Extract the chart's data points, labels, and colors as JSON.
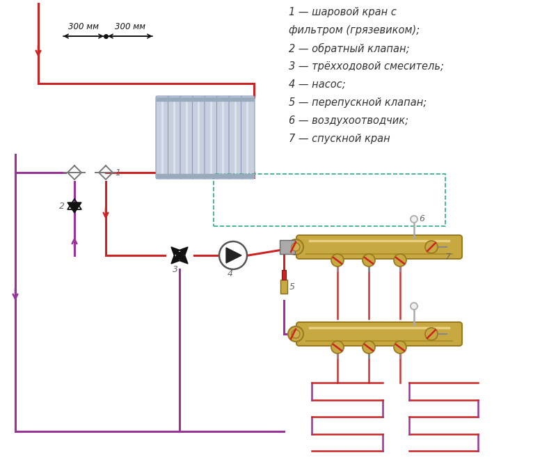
{
  "bg_color": "#ffffff",
  "red": "#cc2222",
  "purple": "#993399",
  "brass": "#c8a840",
  "brass_dark": "#9a7a20",
  "gray_rad": "#b0b8c8",
  "black": "#111111",
  "dark_gray": "#555555",
  "teal": "#2aaa88",
  "legend": [
    "1 — шаровой кран с",
    "фильтром (грязевиком);",
    "2 — обратный клапан;",
    "3 — трёхходовой смеситель;",
    "4 — насос;",
    "5 — перепускной клапан;",
    "6 — воздухоотводчик;",
    "7 — спускной кран"
  ],
  "dim_label": "300 мм"
}
